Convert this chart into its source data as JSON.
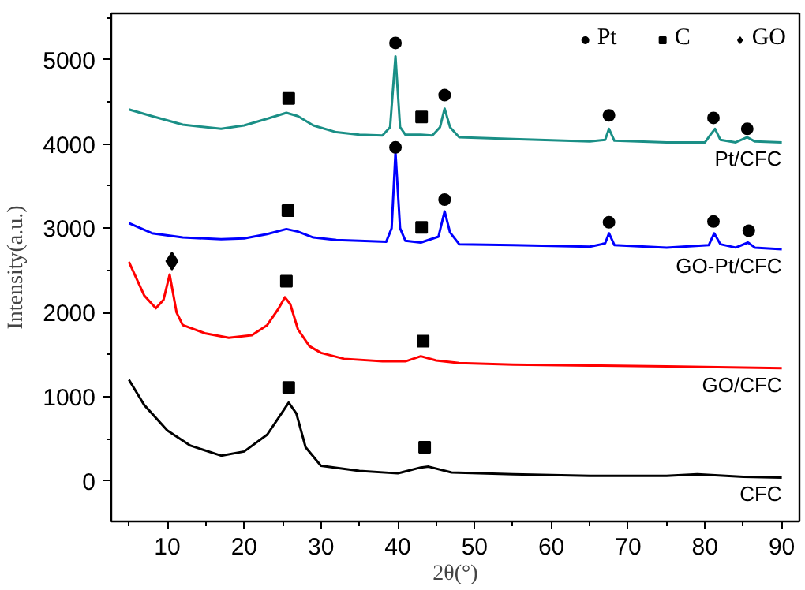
{
  "chart_data": {
    "type": "line",
    "xlabel": "2θ(°)",
    "ylabel": "Intensity(a.u.)",
    "xlim": [
      2.7,
      92.3
    ],
    "ylim": [
      -480,
      5550
    ],
    "xticks": [
      10,
      20,
      30,
      40,
      50,
      60,
      70,
      80,
      90
    ],
    "yticks": [
      0,
      1000,
      2000,
      3000,
      4000,
      5000
    ],
    "grid": false,
    "legend": "top right",
    "line_style": "solid",
    "series": [
      {
        "name": "Pt/CFC",
        "color": "#1a8f86",
        "x": [
          5,
          8,
          12,
          17,
          20,
          23,
          25.5,
          27,
          29,
          32,
          35,
          38,
          39,
          39.7,
          40.3,
          41,
          43,
          44.5,
          45.5,
          46.1,
          46.8,
          48,
          55,
          65,
          67,
          67.5,
          68.2,
          75,
          80,
          80.8,
          81.3,
          82,
          84,
          85.5,
          86.5,
          90
        ],
        "values": [
          4410,
          4330,
          4230,
          4180,
          4220,
          4300,
          4370,
          4330,
          4220,
          4140,
          4110,
          4100,
          4200,
          5040,
          4200,
          4110,
          4110,
          4100,
          4200,
          4420,
          4200,
          4080,
          4060,
          4030,
          4050,
          4180,
          4040,
          4020,
          4020,
          4120,
          4180,
          4050,
          4020,
          4080,
          4030,
          4020
        ]
      },
      {
        "name": "GO-Pt/CFC",
        "color": "#0000ff",
        "x": [
          5,
          8,
          12,
          17,
          20,
          23,
          25.5,
          27,
          29,
          32,
          35,
          38.5,
          39.2,
          39.7,
          40.3,
          41,
          43,
          45.3,
          46.1,
          46.8,
          48,
          55,
          65,
          67,
          67.5,
          68.2,
          75,
          80.5,
          81.2,
          82,
          84,
          85.6,
          86.5,
          90
        ],
        "values": [
          3060,
          2940,
          2890,
          2870,
          2880,
          2930,
          2990,
          2960,
          2890,
          2860,
          2850,
          2840,
          3000,
          3900,
          3000,
          2850,
          2830,
          2900,
          3200,
          2950,
          2810,
          2800,
          2780,
          2820,
          2940,
          2800,
          2770,
          2800,
          2940,
          2810,
          2770,
          2830,
          2770,
          2750
        ]
      },
      {
        "name": "GO/CFC",
        "color": "#ff0000",
        "x": [
          5,
          7,
          8.5,
          9.5,
          10.3,
          11.2,
          12,
          15,
          18,
          21,
          23,
          24.5,
          25.3,
          26,
          27,
          28.5,
          30,
          33,
          38,
          41,
          43,
          45,
          48,
          55,
          65,
          75,
          90
        ],
        "values": [
          2600,
          2200,
          2050,
          2150,
          2450,
          2000,
          1850,
          1750,
          1700,
          1730,
          1850,
          2050,
          2180,
          2100,
          1800,
          1600,
          1520,
          1450,
          1420,
          1420,
          1480,
          1430,
          1400,
          1380,
          1370,
          1360,
          1340
        ]
      },
      {
        "name": "CFC",
        "color": "#000000",
        "x": [
          5,
          7,
          10,
          13,
          17,
          20,
          23,
          25,
          25.8,
          26.8,
          28,
          30,
          35,
          40,
          43,
          44,
          47,
          55,
          65,
          75,
          79,
          85,
          90
        ],
        "values": [
          1200,
          900,
          600,
          420,
          300,
          350,
          550,
          820,
          930,
          800,
          400,
          180,
          120,
          90,
          160,
          170,
          100,
          80,
          60,
          60,
          80,
          50,
          40
        ]
      },
      {
        "name": "Pt",
        "type": "scatter",
        "marker": "circle",
        "color": "#000000",
        "x": [
          39.7,
          46.1,
          67.5,
          81.1,
          85.5,
          39.7,
          46.1,
          67.5,
          81.1,
          85.7
        ],
        "values": [
          5200,
          4580,
          4340,
          4310,
          4180,
          3960,
          3340,
          3070,
          3080,
          2970
        ]
      },
      {
        "name": "C",
        "type": "scatter",
        "marker": "square",
        "color": "#000000",
        "x": [
          25.8,
          43.1,
          25.7,
          43.1,
          25.5,
          43.3,
          25.8,
          43.5
        ],
        "values": [
          4540,
          4320,
          3210,
          3010,
          2370,
          1660,
          1110,
          400
        ]
      },
      {
        "name": "GO",
        "type": "scatter",
        "marker": "diamond",
        "color": "#000000",
        "x": [
          10.6
        ],
        "values": [
          2610
        ]
      }
    ]
  }
}
